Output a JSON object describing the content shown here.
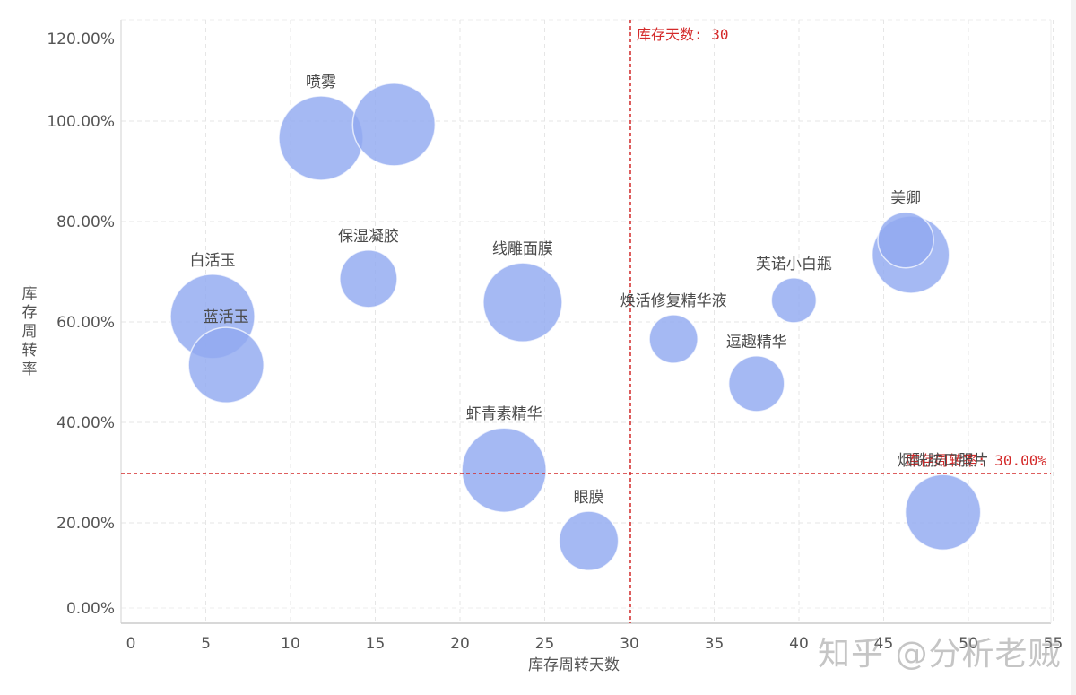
{
  "chart_data": {
    "type": "scatter",
    "subtype": "bubble",
    "title": "",
    "xlabel": "库存周转天数",
    "ylabel": "库存周转率",
    "xlim": [
      0,
      55
    ],
    "ylim": [
      0,
      120
    ],
    "x_ticks": [
      "0",
      "5",
      "10",
      "15",
      "20",
      "25",
      "30",
      "35",
      "40",
      "45",
      "50",
      "55"
    ],
    "y_ticks": [
      "0.00%",
      "20.00%",
      "40.00%",
      "60.00%",
      "80.00%",
      "100.00%",
      "120.00%"
    ],
    "grid": true,
    "bubble_color": "#91aaf0",
    "reference_lines": [
      {
        "axis": "x",
        "value": 30,
        "label": "库存天数: 30",
        "color": "#d42a2a"
      },
      {
        "axis": "y",
        "value": 30,
        "label": "库存周转率: 30.00%",
        "color": "#d42a2a"
      }
    ],
    "points": [
      {
        "name": "喷雾",
        "x": 11.8,
        "y": 96.6,
        "r": 47
      },
      {
        "name": "",
        "x": 16.1,
        "y": 99.3,
        "r": 46
      },
      {
        "name": "白活玉",
        "x": 5.4,
        "y": 61.1,
        "r": 47
      },
      {
        "name": "蓝活玉",
        "x": 6.2,
        "y": 51.4,
        "r": 42
      },
      {
        "name": "保湿凝胶",
        "x": 14.6,
        "y": 68.6,
        "r": 32
      },
      {
        "name": "线雕面膜",
        "x": 23.7,
        "y": 63.9,
        "r": 44
      },
      {
        "name": "虾青素精华",
        "x": 22.6,
        "y": 30.5,
        "r": 47
      },
      {
        "name": "眼膜",
        "x": 27.6,
        "y": 16.4,
        "r": 33
      },
      {
        "name": "焕活修复精华液",
        "x": 32.6,
        "y": 56.6,
        "r": 27
      },
      {
        "name": "逗趣精华",
        "x": 37.5,
        "y": 47.7,
        "r": 31
      },
      {
        "name": "英诺小白瓶",
        "x": 39.7,
        "y": 64.3,
        "r": 25
      },
      {
        "name": "",
        "x": 46.6,
        "y": 73.4,
        "r": 43
      },
      {
        "name": "美卿",
        "x": 46.3,
        "y": 76.3,
        "r": 31
      },
      {
        "name": "烟酰胺口服片",
        "x": 48.5,
        "y": 22.1,
        "r": 42
      }
    ]
  },
  "watermark": "知乎 @分析老贼"
}
